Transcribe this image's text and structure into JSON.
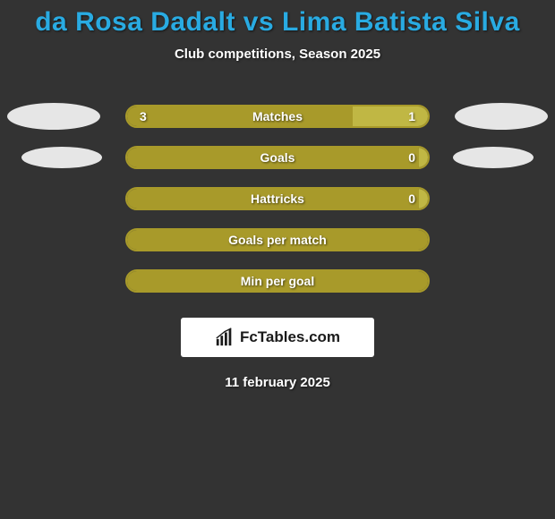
{
  "title": "da Rosa Dadalt vs Lima Batista Silva",
  "subtitle": "Club competitions, Season 2025",
  "branding": "FcTables.com",
  "date": "11 february 2025",
  "colors": {
    "background": "#333333",
    "title": "#29abe2",
    "text": "#ffffff",
    "bar_fill": "#a89a2a",
    "bar_empty": "#c0b744",
    "bar_border": "#a89a2a",
    "ellipse": "#e6e6e6",
    "brand_bg": "#ffffff"
  },
  "rows": [
    {
      "label": "Matches",
      "left_value": "3",
      "right_value": "1",
      "left_pct": 75,
      "right_pct": 25,
      "show_left_ellipse": true,
      "show_right_ellipse": true,
      "ellipse_size": "large"
    },
    {
      "label": "Goals",
      "left_value": "",
      "right_value": "0",
      "left_pct": 97,
      "right_pct": 3,
      "show_left_ellipse": true,
      "show_right_ellipse": true,
      "ellipse_size": "small"
    },
    {
      "label": "Hattricks",
      "left_value": "",
      "right_value": "0",
      "left_pct": 97,
      "right_pct": 3,
      "show_left_ellipse": false,
      "show_right_ellipse": false
    },
    {
      "label": "Goals per match",
      "left_value": "",
      "right_value": "",
      "left_pct": 100,
      "right_pct": 0,
      "show_left_ellipse": false,
      "show_right_ellipse": false
    },
    {
      "label": "Min per goal",
      "left_value": "",
      "right_value": "",
      "left_pct": 100,
      "right_pct": 0,
      "show_left_ellipse": false,
      "show_right_ellipse": false
    }
  ]
}
